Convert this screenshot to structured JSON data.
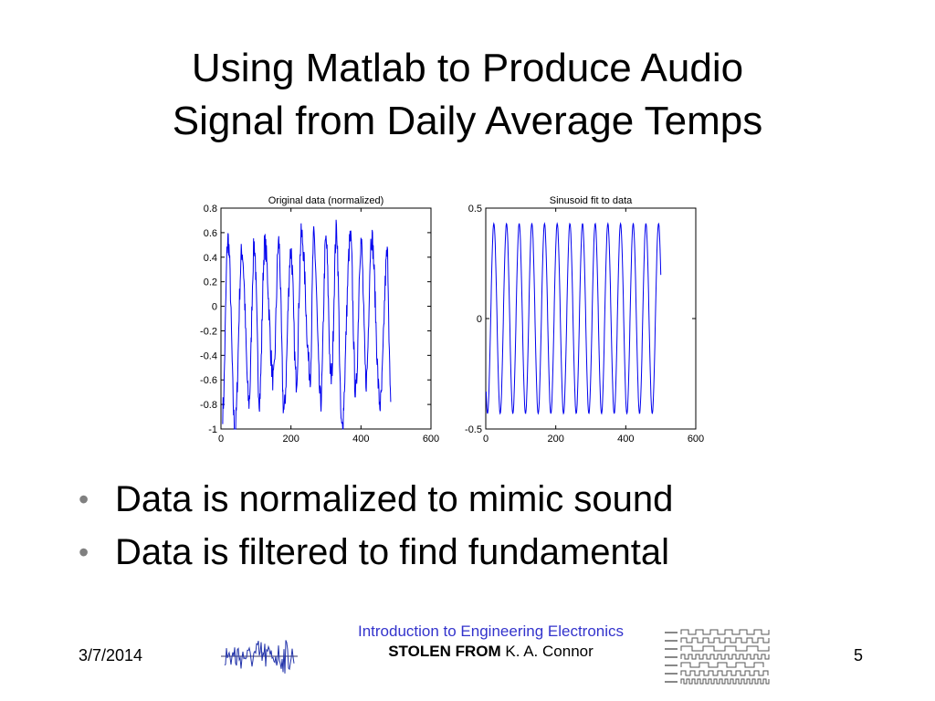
{
  "slide": {
    "title_line1": "Using Matlab to Produce Audio",
    "title_line2": "Signal from Daily Average Temps",
    "bullets": [
      "Data is normalized to mimic sound",
      "Data is filtered to find fundamental"
    ],
    "footer": {
      "date": "3/7/2014",
      "course": "Introduction to Engineering Electronics",
      "stolen_prefix": "STOLEN FROM",
      "author": "K. A. Connor",
      "page_number": "5"
    },
    "bullet_color": "#808080",
    "course_color": "#3333cc",
    "line_color": "#0000ee"
  },
  "chart_data": [
    {
      "type": "line",
      "title": "Original data (normalized)",
      "xlim": [
        0,
        600
      ],
      "ylim": [
        -1,
        0.8
      ],
      "xticks": [
        "0",
        "200",
        "400",
        "600"
      ],
      "yticks": [
        "0.8",
        "0.6",
        "0.4",
        "0.2",
        "0",
        "-0.2",
        "-0.4",
        "-0.6",
        "-0.8",
        "-1"
      ],
      "grid": false,
      "series": [
        {
          "x_range": [
            1,
            500
          ],
          "peaks": [
            [
              20,
              0.55
            ],
            [
              60,
              0.45
            ],
            [
              95,
              0.5
            ],
            [
              125,
              0.5
            ],
            [
              165,
              0.52
            ],
            [
              200,
              0.45
            ],
            [
              230,
              0.58
            ],
            [
              265,
              0.55
            ],
            [
              300,
              0.53
            ],
            [
              330,
              0.62
            ],
            [
              370,
              0.55
            ],
            [
              400,
              0.53
            ],
            [
              430,
              0.57
            ],
            [
              475,
              0.42
            ]
          ],
          "troughs": [
            [
              5,
              -0.85
            ],
            [
              40,
              -1.0
            ],
            [
              80,
              -0.78
            ],
            [
              110,
              -0.75
            ],
            [
              150,
              -0.6
            ],
            [
              180,
              -0.85
            ],
            [
              215,
              -0.6
            ],
            [
              255,
              -0.55
            ],
            [
              285,
              -0.78
            ],
            [
              315,
              -0.6
            ],
            [
              345,
              -1.0
            ],
            [
              385,
              -0.7
            ],
            [
              415,
              -0.6
            ],
            [
              455,
              -0.8
            ],
            [
              485,
              -0.78
            ]
          ]
        }
      ]
    },
    {
      "type": "line",
      "title": "Sinusoid fit to data",
      "xlim": [
        0,
        600
      ],
      "ylim": [
        -0.5,
        0.5
      ],
      "xticks": [
        "0",
        "200",
        "400",
        "600"
      ],
      "yticks": [
        "0.5",
        "0",
        "-0.5"
      ],
      "grid": false,
      "series": [
        {
          "x_range": [
            1,
            500
          ],
          "amplitude": 0.43,
          "period": 36.2,
          "phase_deg": 0
        }
      ]
    }
  ]
}
